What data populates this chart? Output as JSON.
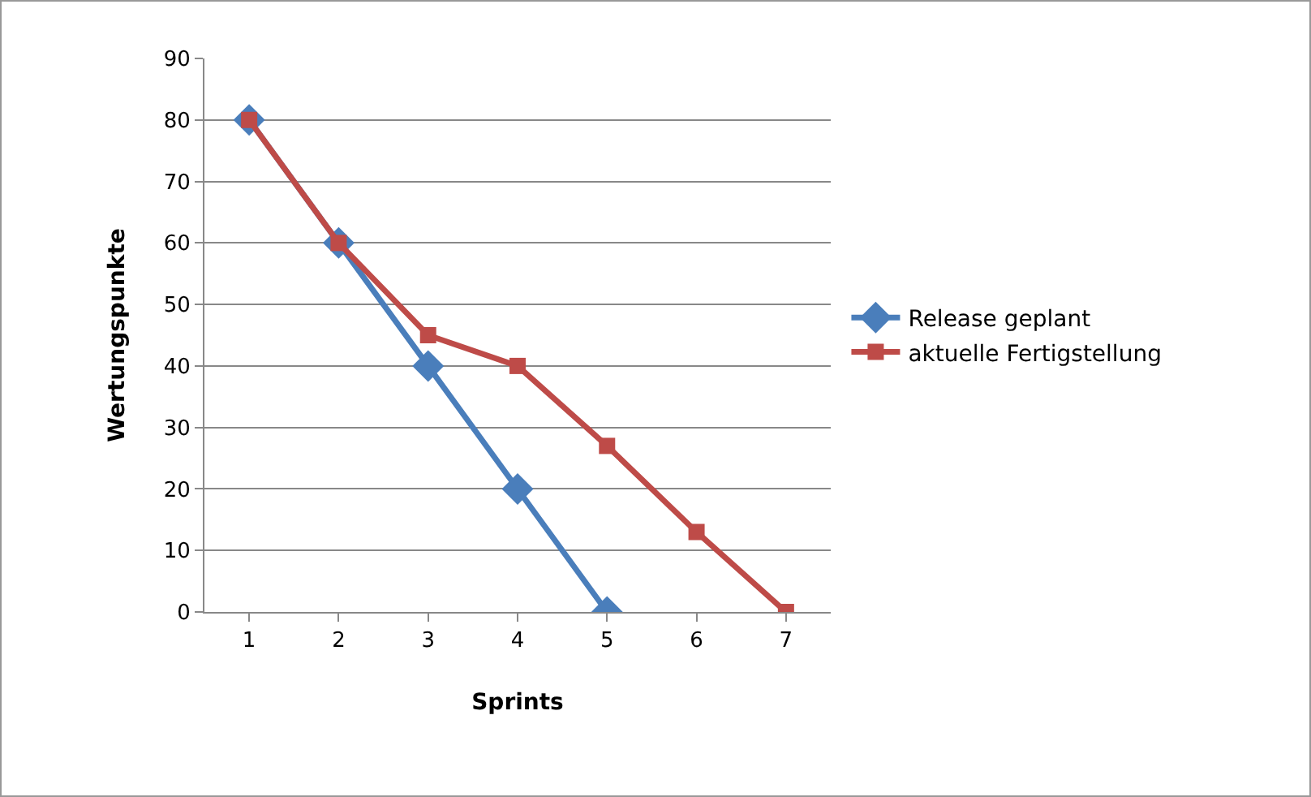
{
  "chart_data": {
    "type": "line",
    "xlabel": "Sprints",
    "ylabel": "Wertungspunkte",
    "categories": [
      "1",
      "2",
      "3",
      "4",
      "5",
      "6",
      "7"
    ],
    "series": [
      {
        "name": "Release geplant",
        "color": "#4a7ebb",
        "marker": "diamond",
        "values": [
          80,
          60,
          40,
          20,
          0,
          null,
          null
        ]
      },
      {
        "name": "aktuelle Fertigstellung",
        "color": "#be4b48",
        "marker": "square",
        "values": [
          80,
          60,
          45,
          40,
          27,
          13,
          0
        ]
      }
    ],
    "ylim": [
      0,
      90
    ],
    "yticks": [
      0,
      10,
      20,
      30,
      40,
      50,
      60,
      70,
      80,
      90
    ],
    "grid": "y",
    "legend": "right",
    "line_style": "solid"
  }
}
